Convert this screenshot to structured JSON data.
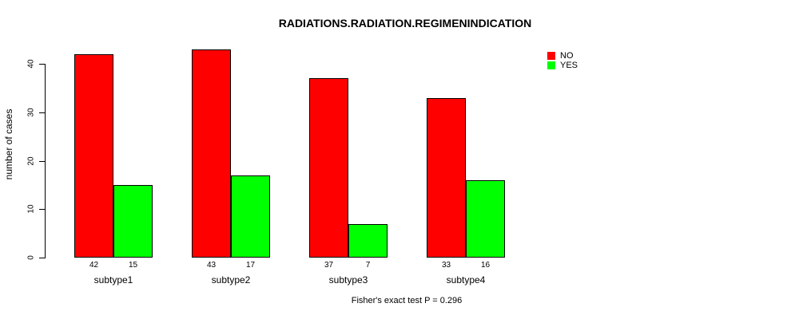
{
  "chart_data": {
    "type": "bar",
    "title": "RADIATIONS.RADIATION.REGIMENINDICATION",
    "ylabel": "number of cases",
    "xlabel": "",
    "categories": [
      "subtype1",
      "subtype2",
      "subtype3",
      "subtype4"
    ],
    "series": [
      {
        "name": "NO",
        "color": "#ff0000",
        "values": [
          42,
          43,
          37,
          33
        ]
      },
      {
        "name": "YES",
        "color": "#00ff00",
        "values": [
          15,
          17,
          7,
          16
        ]
      }
    ],
    "yticks": [
      0,
      10,
      20,
      30,
      40
    ],
    "ylim": [
      0,
      43
    ],
    "grid": false,
    "legend_position": "top-right",
    "annotation": "Fisher's exact test P = 0.296"
  },
  "colors": {
    "bar_no": "#ff0000",
    "bar_yes": "#00ff00",
    "axis": "#000000",
    "text": "#000000",
    "background": "#ffffff"
  }
}
